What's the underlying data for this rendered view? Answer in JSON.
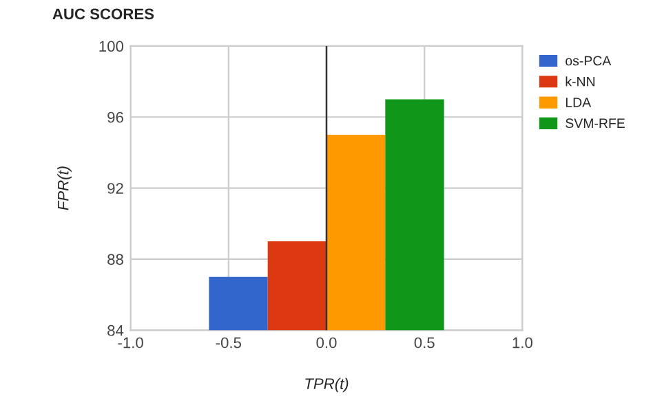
{
  "chart_data": {
    "type": "bar",
    "title": "AUC SCORES",
    "xlabel": "TPR(t)",
    "ylabel": "FPR(t)",
    "series": [
      {
        "name": "os-PCA",
        "color": "#3366cc",
        "x": [
          -0.45
        ],
        "values": [
          87
        ]
      },
      {
        "name": "k-NN",
        "color": "#dc3912",
        "x": [
          -0.15
        ],
        "values": [
          89
        ]
      },
      {
        "name": "LDA",
        "color": "#ff9900",
        "x": [
          0.15
        ],
        "values": [
          95
        ]
      },
      {
        "name": "SVM-RFE",
        "color": "#109618",
        "x": [
          0.45
        ],
        "values": [
          97
        ]
      }
    ],
    "xlim": [
      -1.0,
      1.0
    ],
    "xticks": [
      {
        "value": -1.0,
        "label": "-1.0"
      },
      {
        "value": -0.5,
        "label": "-0.5"
      },
      {
        "value": 0.0,
        "label": "0.0"
      },
      {
        "value": 0.5,
        "label": "0.5"
      },
      {
        "value": 1.0,
        "label": "1.0"
      }
    ],
    "ylim": [
      84,
      100
    ],
    "yticks": [
      84,
      88,
      92,
      96,
      100
    ],
    "ref_lines": [
      {
        "axis": "x",
        "value": 0,
        "color": "#333333"
      }
    ],
    "grid": true,
    "legend": "right"
  }
}
